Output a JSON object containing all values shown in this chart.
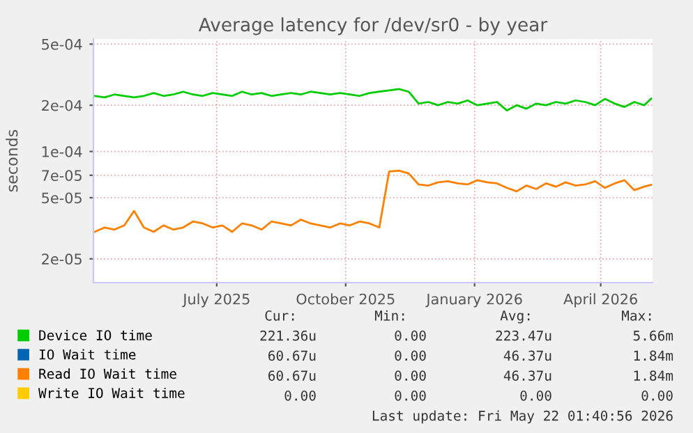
{
  "chart_data": {
    "type": "line",
    "title": "Average latency for /dev/sr0 - by year",
    "ylabel": "seconds",
    "x": [
      "2025-04-19",
      "2025-04-26",
      "2025-05-03",
      "2025-05-10",
      "2025-05-17",
      "2025-05-24",
      "2025-05-31",
      "2025-06-07",
      "2025-06-14",
      "2025-06-21",
      "2025-06-28",
      "2025-07-05",
      "2025-07-12",
      "2025-07-19",
      "2025-07-26",
      "2025-08-02",
      "2025-08-09",
      "2025-08-16",
      "2025-08-23",
      "2025-08-30",
      "2025-09-06",
      "2025-09-13",
      "2025-09-20",
      "2025-09-27",
      "2025-10-04",
      "2025-10-11",
      "2025-10-18",
      "2025-10-25",
      "2025-11-01",
      "2025-11-08",
      "2025-11-15",
      "2025-11-22",
      "2025-11-29",
      "2025-12-06",
      "2025-12-13",
      "2025-12-20",
      "2025-12-27",
      "2026-01-03",
      "2026-01-10",
      "2026-01-17",
      "2026-01-24",
      "2026-01-31",
      "2026-02-07",
      "2026-02-14",
      "2026-02-21",
      "2026-02-28",
      "2026-03-07",
      "2026-03-14",
      "2026-03-21",
      "2026-03-28",
      "2026-04-04",
      "2026-04-11",
      "2026-04-18",
      "2026-04-25",
      "2026-05-02",
      "2026-05-09",
      "2026-05-16",
      "2026-05-21"
    ],
    "series": [
      {
        "name": "Device IO time",
        "color": "#00cc00",
        "values": [
          0.00023,
          0.000225,
          0.000235,
          0.00023,
          0.000225,
          0.00023,
          0.00024,
          0.00023,
          0.000235,
          0.000245,
          0.000235,
          0.00023,
          0.00024,
          0.000235,
          0.00023,
          0.000245,
          0.000235,
          0.00024,
          0.00023,
          0.000235,
          0.00024,
          0.000235,
          0.000245,
          0.00024,
          0.000235,
          0.00024,
          0.000235,
          0.00023,
          0.00024,
          0.000245,
          0.00025,
          0.000255,
          0.000245,
          0.000205,
          0.00021,
          0.0002,
          0.00021,
          0.000205,
          0.000215,
          0.0002,
          0.000205,
          0.00021,
          0.000185,
          0.0002,
          0.00019,
          0.000205,
          0.0002,
          0.00021,
          0.000205,
          0.000215,
          0.00021,
          0.0002,
          0.00022,
          0.000205,
          0.000195,
          0.00021,
          0.0002,
          0.000221
        ]
      },
      {
        "name": "IO Wait time",
        "color": "#0066b3",
        "values": [
          null,
          null,
          null,
          null,
          null,
          null,
          null,
          null,
          null,
          null,
          null,
          null,
          null,
          null,
          null,
          null,
          null,
          null,
          null,
          null,
          null,
          null,
          null,
          null,
          null,
          null,
          null,
          null,
          null,
          null,
          null,
          null,
          null,
          null,
          null,
          null,
          null,
          null,
          null,
          null,
          null,
          null,
          null,
          null,
          null,
          null,
          null,
          null,
          null,
          null,
          null,
          null,
          null,
          null,
          null,
          null,
          null,
          null
        ]
      },
      {
        "name": "Read IO Wait time",
        "color": "#ff8000",
        "values": [
          3e-05,
          3.2e-05,
          3.1e-05,
          3.3e-05,
          4.1e-05,
          3.2e-05,
          3e-05,
          3.3e-05,
          3.1e-05,
          3.2e-05,
          3.5e-05,
          3.4e-05,
          3.2e-05,
          3.3e-05,
          3e-05,
          3.4e-05,
          3.3e-05,
          3.1e-05,
          3.5e-05,
          3.4e-05,
          3.3e-05,
          3.6e-05,
          3.4e-05,
          3.3e-05,
          3.2e-05,
          3.4e-05,
          3.3e-05,
          3.5e-05,
          3.4e-05,
          3.2e-05,
          7.4e-05,
          7.5e-05,
          7.2e-05,
          6.1e-05,
          6e-05,
          6.3e-05,
          6.4e-05,
          6.2e-05,
          6.1e-05,
          6.5e-05,
          6.3e-05,
          6.2e-05,
          5.8e-05,
          5.5e-05,
          6e-05,
          5.7e-05,
          6.2e-05,
          5.9e-05,
          6.3e-05,
          6e-05,
          6.1e-05,
          6.4e-05,
          5.8e-05,
          6.2e-05,
          6.5e-05,
          5.6e-05,
          5.9e-05,
          6.07e-05
        ]
      },
      {
        "name": "Write IO Wait time",
        "color": "#ffcc00",
        "values": [
          null,
          null,
          null,
          null,
          null,
          null,
          null,
          null,
          null,
          null,
          null,
          null,
          null,
          null,
          null,
          null,
          null,
          null,
          null,
          null,
          null,
          null,
          null,
          null,
          null,
          null,
          null,
          null,
          null,
          null,
          null,
          null,
          null,
          null,
          null,
          null,
          null,
          null,
          null,
          null,
          null,
          null,
          null,
          null,
          null,
          null,
          null,
          null,
          null,
          null,
          null,
          null,
          null,
          null,
          null,
          null,
          null,
          null
        ]
      }
    ],
    "log": "y",
    "xlim": [
      "2025-04-18",
      "2026-05-22"
    ],
    "xticks": [
      {
        "value": "2025-07-15",
        "label": "July 2025"
      },
      {
        "value": "2025-10-15",
        "label": "October 2025"
      },
      {
        "value": "2026-01-15",
        "label": "January 2026"
      },
      {
        "value": "2026-04-15",
        "label": "April 2026"
      }
    ],
    "ylim": [
      1.4e-05,
      0.00054
    ],
    "yticks": [
      {
        "value": 2e-05,
        "label": "2e-05"
      },
      {
        "value": 5e-05,
        "label": "5e-05"
      },
      {
        "value": 7e-05,
        "label": "7e-05"
      },
      {
        "value": 0.0001,
        "label": "1e-04"
      },
      {
        "value": 0.0002,
        "label": "2e-04"
      },
      {
        "value": 0.0005,
        "label": "5e-04"
      }
    ],
    "grid": true,
    "legend": "bottom",
    "annotations": [
      "Cur:",
      "Min:",
      "Avg:",
      "Max:",
      "221.36u",
      "0.00",
      "223.47u",
      "5.66m",
      "60.67u",
      "0.00",
      "46.37u",
      "1.84m",
      "60.67u",
      "0.00",
      "46.37u",
      "1.84m",
      "0.00",
      "0.00",
      "0.00",
      "0.00",
      "Last update: Fri May 22 01:40:56 2026"
    ]
  }
}
